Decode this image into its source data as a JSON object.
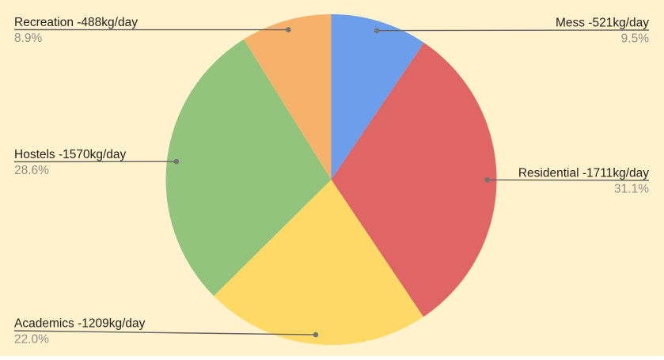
{
  "background_color": "#fff2cc",
  "chart_data": {
    "type": "pie",
    "title": "",
    "unit": "kg/day",
    "legend_position": "labeled",
    "direction": "clockwise",
    "start_angle_deg": 0,
    "label_color": "#222222",
    "pct_color": "#8e8e8e",
    "leader_line_color": "#636363",
    "leader_dot_color": "#757575",
    "slices": [
      {
        "label": "Mess",
        "value": 521,
        "pct_label": "9.5%",
        "display": "Mess -521kg/day",
        "color": "#6d9eeb"
      },
      {
        "label": "Residential",
        "value": 1711,
        "pct_label": "31.1%",
        "display": "Residential -1711kg/day",
        "color": "#e06666"
      },
      {
        "label": "Academics",
        "value": 1209,
        "pct_label": "22.0%",
        "display": "Academics -1209kg/day",
        "color": "#ffd966"
      },
      {
        "label": "Hostels",
        "value": 1570,
        "pct_label": "28.6%",
        "display": "Hostels -1570kg/day",
        "color": "#93c47d"
      },
      {
        "label": "Recreation",
        "value": 488,
        "pct_label": "8.9%",
        "display": "Recreation -488kg/day",
        "color": "#f6b26b"
      }
    ]
  }
}
